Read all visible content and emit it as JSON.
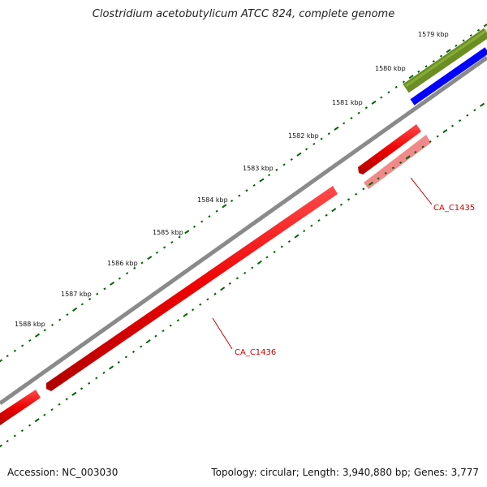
{
  "title": "Clostridium acetobutylicum ATCC 824, complete genome",
  "footer": {
    "accession": "Accession: NC_003030",
    "summary": "Topology: circular; Length: 3,940,880 bp; Genes: 3,777"
  },
  "ticks": [
    "1579 kbp",
    "1580 kbp",
    "1581 kbp",
    "1582 kbp",
    "1583 kbp",
    "1584 kbp",
    "1585 kbp",
    "1586 kbp",
    "1587 kbp",
    "1588 kbp"
  ],
  "genes": [
    {
      "label": "CA_C1435"
    },
    {
      "label": "CA_C1436"
    }
  ],
  "colors": {
    "backbone": "#808080",
    "cds": "#ff0000",
    "cds_light": "#f08080",
    "green_band": "#6b8e23",
    "blue_band": "#0000ff",
    "tick": "#006400",
    "label": "#cc0000"
  }
}
